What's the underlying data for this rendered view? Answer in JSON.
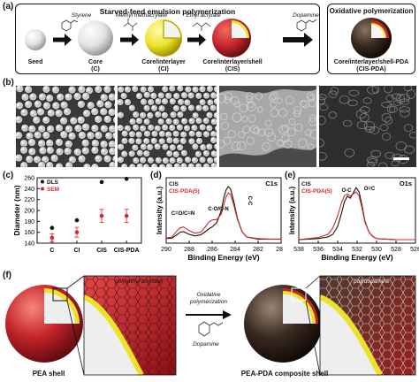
{
  "panel_labels": {
    "a": "(a)",
    "b": "(b)",
    "c": "(c)",
    "d": "(d)",
    "e": "(e)",
    "f": "(f)"
  },
  "panel_a": {
    "box1_title": "Starved-feed emulsion polymerization",
    "box2_title": "Oxidative polymerization",
    "reagents": [
      "Styrene",
      "Methyl methacrylate",
      "Ethyl acrylate",
      "Dopamine"
    ],
    "particles": [
      {
        "name": "Seed",
        "abbr": ""
      },
      {
        "name": "Core",
        "abbr": "(C)"
      },
      {
        "name": "Core/interlayer",
        "abbr": "(CI)"
      },
      {
        "name": "Core/interlayer/shell",
        "abbr": "(CIS)"
      },
      {
        "name": "Core/interlayer/shell-PDA",
        "abbr": "(CIS-PDA)"
      }
    ]
  },
  "panel_f": {
    "left_label": "PEA shell",
    "right_label": "PEA-PDA composite shell",
    "inset_left_label": "poly(ethyl acrylate)",
    "inset_right_label": "polydopamine",
    "arrow_label": "Oxidative polymerization",
    "reagent": "Dopamine"
  },
  "colors": {
    "dls": "#111111",
    "sem": "#d8262f",
    "cis": "#111111",
    "cis_pda": "#d8262f",
    "core": "#f4f4f4",
    "interlayer": "#f2e82a",
    "shell": "#c5242a",
    "pda": "#3a2a20"
  },
  "chart_data": [
    {
      "type": "scatter",
      "panel": "c",
      "ylabel": "Diameter (nm)",
      "categories": [
        "C",
        "CI",
        "CIS",
        "CIS-PDA"
      ],
      "ylim": [
        140,
        260
      ],
      "yticks": [
        140,
        160,
        180,
        200,
        220,
        240,
        260
      ],
      "legend_placement": "top-left",
      "series": [
        {
          "name": "DLS",
          "values": [
            168,
            182,
            252,
            258
          ],
          "color": "#111111"
        },
        {
          "name": "SEM",
          "values": [
            150,
            160,
            190,
            190
          ],
          "errors": [
            7,
            9,
            12,
            12
          ],
          "color": "#d8262f"
        }
      ]
    },
    {
      "type": "line",
      "panel": "d",
      "title": "C1s",
      "xlabel": "Binding Energy (eV)",
      "ylabel": "Intensity (a.u.)",
      "xlim": [
        290,
        280
      ],
      "xticks": [
        290,
        288,
        286,
        284,
        282,
        280
      ],
      "annotations": [
        "C=O/C=N",
        "C-O/C-N",
        "C-C"
      ],
      "series": [
        {
          "name": "CIS",
          "color": "#111111",
          "x": [
            290,
            289.5,
            289,
            288.8,
            288.5,
            288,
            287.5,
            287,
            286.6,
            286.3,
            286,
            285.6,
            285.2,
            285,
            284.8,
            284.6,
            284.4,
            284.1,
            283.8,
            283.4,
            283,
            282,
            281,
            280
          ],
          "y": [
            0.02,
            0.03,
            0.1,
            0.14,
            0.15,
            0.1,
            0.07,
            0.09,
            0.15,
            0.2,
            0.24,
            0.32,
            0.55,
            0.78,
            0.93,
            1.0,
            0.96,
            0.7,
            0.4,
            0.15,
            0.05,
            0.01,
            0.01,
            0.01
          ]
        },
        {
          "name": "CIS-PDA(5)",
          "color": "#d8262f",
          "x": [
            290,
            289.5,
            289,
            288.8,
            288.5,
            288,
            287.5,
            287,
            286.6,
            286.3,
            286,
            285.6,
            285.2,
            285,
            284.8,
            284.6,
            284.4,
            284.1,
            283.8,
            283.4,
            283,
            282,
            281,
            280
          ],
          "y": [
            0.03,
            0.05,
            0.18,
            0.22,
            0.24,
            0.17,
            0.12,
            0.14,
            0.24,
            0.33,
            0.37,
            0.38,
            0.48,
            0.65,
            0.8,
            0.88,
            0.85,
            0.64,
            0.38,
            0.15,
            0.05,
            0.02,
            0.01,
            0.01
          ]
        }
      ]
    },
    {
      "type": "line",
      "panel": "e",
      "title": "O1s",
      "xlabel": "Binding Energy (eV)",
      "ylabel": "Intensity (a.u.)",
      "xlim": [
        538,
        526
      ],
      "xticks": [
        538,
        536,
        534,
        532,
        530,
        528,
        526
      ],
      "annotations": [
        "O-C",
        "O=C"
      ],
      "series": [
        {
          "name": "CIS",
          "color": "#111111",
          "x": [
            538,
            537,
            536,
            535,
            534.5,
            534,
            533.6,
            533.3,
            533,
            532.7,
            532.4,
            532.1,
            531.8,
            531.5,
            531.2,
            530.8,
            530.4,
            530,
            529,
            528,
            526
          ],
          "y": [
            0.0,
            0.01,
            0.02,
            0.05,
            0.1,
            0.25,
            0.5,
            0.72,
            0.82,
            0.78,
            0.88,
            0.98,
            0.9,
            0.65,
            0.35,
            0.15,
            0.06,
            0.02,
            0.01,
            0.0,
            0.0
          ]
        },
        {
          "name": "CIS-PDA(5)",
          "color": "#d8262f",
          "x": [
            538,
            537,
            536,
            535,
            534.5,
            534,
            533.6,
            533.3,
            533,
            532.7,
            532.4,
            532.1,
            531.8,
            531.5,
            531.2,
            530.8,
            530.4,
            530,
            529,
            528,
            526
          ],
          "y": [
            0.0,
            0.02,
            0.04,
            0.1,
            0.22,
            0.45,
            0.7,
            0.83,
            0.86,
            0.82,
            0.86,
            0.9,
            0.82,
            0.6,
            0.33,
            0.15,
            0.06,
            0.02,
            0.01,
            0.0,
            0.0
          ]
        }
      ]
    }
  ]
}
